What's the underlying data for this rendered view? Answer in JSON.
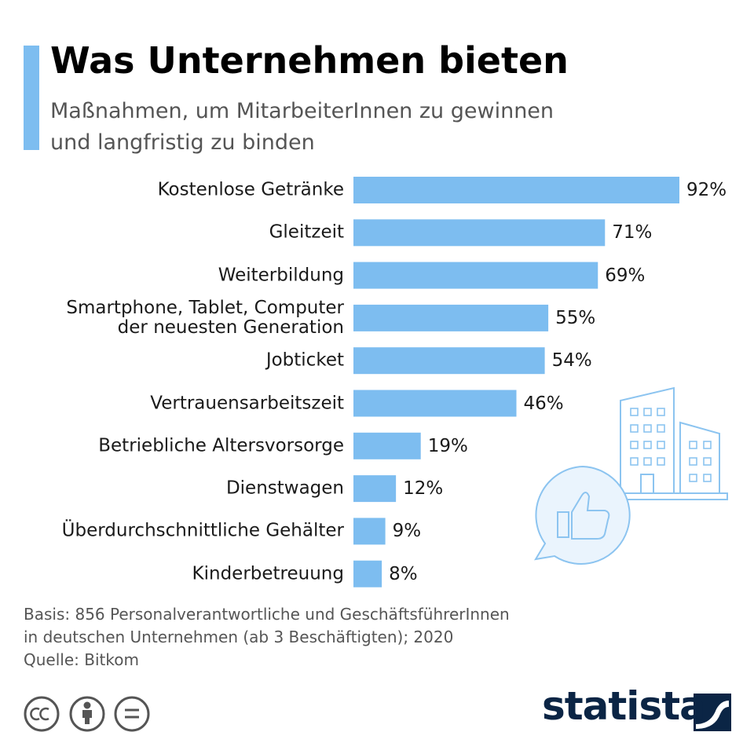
{
  "chart_data": {
    "type": "bar",
    "orientation": "horizontal",
    "title": "Was Unternehmen bieten",
    "subtitle": "Maßnahmen, um MitarbeiterInnen zu gewinnen\nund langfristig zu binden",
    "categories": [
      "Kostenlose Getränke",
      "Gleitzeit",
      "Weiterbildung",
      "Smartphone, Tablet, Computer\nder neuesten Generation",
      "Jobticket",
      "Vertrauensarbeitszeit",
      "Betriebliche Altersvorsorge",
      "Dienstwagen",
      "Überdurchschnittliche Gehälter",
      "Kinderbetreuung"
    ],
    "values": [
      92,
      71,
      69,
      55,
      54,
      46,
      19,
      12,
      9,
      8
    ],
    "value_labels": [
      "92%",
      "71%",
      "69%",
      "55%",
      "54%",
      "46%",
      "19%",
      "12%",
      "9%",
      "8%"
    ],
    "color": "#7dbdf0",
    "note": "Basis: 856 Personalverantwortliche und GeschäftsführerInnen\nin deutschen Unternehmen (ab 3 Beschäftigten); 2020",
    "source": "Quelle: Bitkom",
    "logo": "statista"
  }
}
